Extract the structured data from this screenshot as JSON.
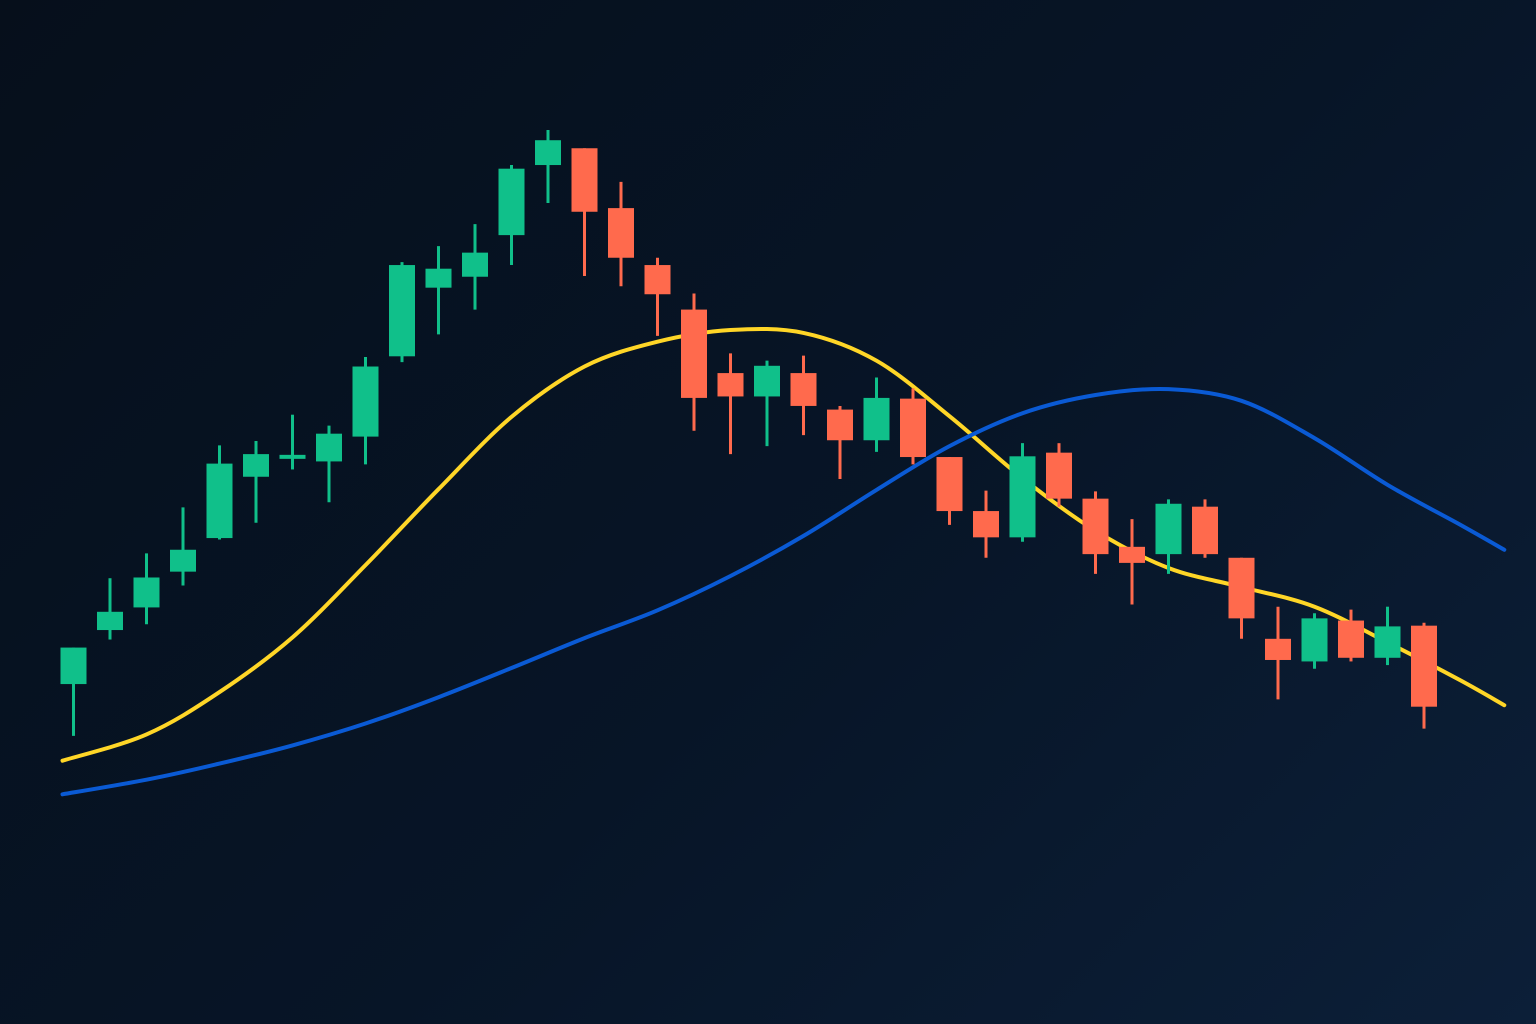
{
  "colors": {
    "background_start": "#060f1b",
    "background_end": "#0c1f38",
    "up": "#10c08a",
    "down": "#ff6a4d",
    "ma_fast": "#ffd627",
    "ma_slow": "#0a5ad4"
  },
  "chart_data": {
    "type": "candlestick",
    "grid": false,
    "legend": "none",
    "axes_visible": false,
    "ylim": [
      0,
      100
    ],
    "candles": [
      {
        "o": 24.1,
        "h": 29.1,
        "l": 17.0,
        "c": 29.1
      },
      {
        "o": 31.5,
        "h": 38.6,
        "l": 30.2,
        "c": 34.0
      },
      {
        "o": 34.6,
        "h": 42.0,
        "l": 32.3,
        "c": 38.7
      },
      {
        "o": 39.5,
        "h": 48.3,
        "l": 37.6,
        "c": 42.5
      },
      {
        "o": 44.1,
        "h": 56.8,
        "l": 43.9,
        "c": 54.3
      },
      {
        "o": 52.5,
        "h": 57.4,
        "l": 46.2,
        "c": 55.6
      },
      {
        "o": 55.0,
        "h": 61.0,
        "l": 53.5,
        "c": 55.5
      },
      {
        "o": 54.6,
        "h": 59.5,
        "l": 49.0,
        "c": 58.4
      },
      {
        "o": 58.0,
        "h": 68.9,
        "l": 54.2,
        "c": 67.6
      },
      {
        "o": 69.0,
        "h": 81.9,
        "l": 68.2,
        "c": 81.5
      },
      {
        "o": 78.4,
        "h": 84.1,
        "l": 72.0,
        "c": 81.0
      },
      {
        "o": 79.9,
        "h": 87.1,
        "l": 75.4,
        "c": 83.2
      },
      {
        "o": 85.6,
        "h": 95.2,
        "l": 81.5,
        "c": 94.7
      },
      {
        "o": 95.2,
        "h": 100.0,
        "l": 90.0,
        "c": 98.6
      },
      {
        "o": 97.5,
        "h": 97.5,
        "l": 80.0,
        "c": 88.8
      },
      {
        "o": 89.3,
        "h": 92.9,
        "l": 78.6,
        "c": 82.5
      },
      {
        "o": 81.5,
        "h": 82.5,
        "l": 71.8,
        "c": 77.5
      },
      {
        "o": 75.4,
        "h": 77.6,
        "l": 58.8,
        "c": 63.3
      },
      {
        "o": 66.7,
        "h": 69.4,
        "l": 55.6,
        "c": 63.5
      },
      {
        "o": 63.5,
        "h": 68.4,
        "l": 56.7,
        "c": 67.7
      },
      {
        "o": 66.7,
        "h": 69.1,
        "l": 58.2,
        "c": 62.2
      },
      {
        "o": 61.7,
        "h": 62.2,
        "l": 52.2,
        "c": 57.5
      },
      {
        "o": 57.5,
        "h": 66.1,
        "l": 55.9,
        "c": 63.3
      },
      {
        "o": 63.2,
        "h": 64.6,
        "l": 54.2,
        "c": 55.2
      },
      {
        "o": 55.2,
        "h": 55.2,
        "l": 45.9,
        "c": 47.8
      },
      {
        "o": 47.8,
        "h": 50.6,
        "l": 41.4,
        "c": 44.2
      },
      {
        "o": 44.2,
        "h": 57.1,
        "l": 43.6,
        "c": 55.3
      },
      {
        "o": 55.8,
        "h": 57.1,
        "l": 48.4,
        "c": 49.5
      },
      {
        "o": 49.5,
        "h": 50.5,
        "l": 39.2,
        "c": 41.9
      },
      {
        "o": 42.9,
        "h": 46.7,
        "l": 35.0,
        "c": 40.7
      },
      {
        "o": 41.9,
        "h": 49.4,
        "l": 39.2,
        "c": 48.8
      },
      {
        "o": 48.4,
        "h": 49.4,
        "l": 41.4,
        "c": 41.9
      },
      {
        "o": 41.4,
        "h": 41.4,
        "l": 30.3,
        "c": 33.1
      },
      {
        "o": 30.3,
        "h": 34.7,
        "l": 22.0,
        "c": 27.4
      },
      {
        "o": 27.2,
        "h": 33.8,
        "l": 26.2,
        "c": 33.1
      },
      {
        "o": 32.8,
        "h": 34.3,
        "l": 27.2,
        "c": 27.7
      },
      {
        "o": 27.7,
        "h": 34.7,
        "l": 26.7,
        "c": 32.0
      },
      {
        "o": 32.1,
        "h": 32.5,
        "l": 18.0,
        "c": 21.0
      }
    ],
    "moving_averages": [
      {
        "name": "",
        "color": "#ffd627",
        "x": [
          -0.3,
          2,
          4,
          6,
          8,
          10,
          12,
          14,
          16,
          18,
          20,
          22,
          24,
          26,
          28,
          30,
          32,
          34,
          36,
          38,
          39.2
        ],
        "y": [
          13.6,
          17.2,
          23.0,
          30.5,
          40.4,
          50.8,
          60.7,
          67.6,
          71.0,
          72.6,
          72.2,
          68.4,
          60.8,
          52.3,
          45.1,
          40.0,
          37.4,
          34.7,
          29.8,
          24.6,
          21.2
        ]
      },
      {
        "name": "",
        "color": "#0a5ad4",
        "x": [
          -0.3,
          2,
          4,
          6,
          8,
          10,
          12,
          14,
          16,
          18,
          20,
          22,
          24,
          26,
          28,
          30,
          32,
          34,
          36,
          38,
          39.2
        ],
        "y": [
          9.0,
          11.0,
          13.2,
          15.7,
          18.7,
          22.3,
          26.3,
          30.4,
          34.2,
          38.9,
          44.4,
          50.7,
          56.7,
          61.2,
          63.7,
          64.5,
          62.9,
          57.8,
          51.4,
          45.9,
          42.5
        ]
      }
    ]
  }
}
